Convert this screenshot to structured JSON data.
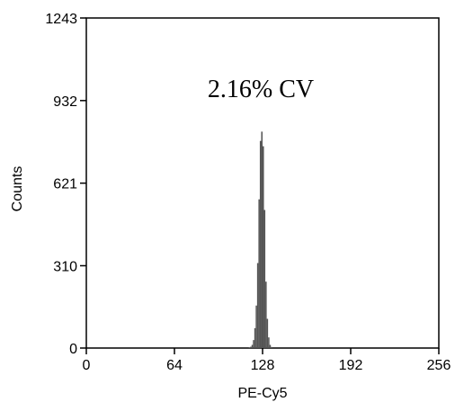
{
  "chart_data": {
    "type": "bar",
    "title": "",
    "xlabel": "PE-Cy5",
    "ylabel": "Counts",
    "xlim": [
      0,
      256
    ],
    "ylim": [
      0,
      1243
    ],
    "xticks": [
      "0",
      "64",
      "128",
      "192",
      "256"
    ],
    "yticks": [
      "0",
      "310",
      "621",
      "932",
      "1243"
    ],
    "annotation": "2.16% CV",
    "grid": false,
    "bar_color": "#555555",
    "bins": [
      [
        118,
        2
      ],
      [
        119,
        5
      ],
      [
        120,
        12
      ],
      [
        121,
        30
      ],
      [
        122,
        75
      ],
      [
        123,
        160
      ],
      [
        124,
        320
      ],
      [
        125,
        560
      ],
      [
        126,
        780
      ],
      [
        127,
        815
      ],
      [
        128,
        760
      ],
      [
        129,
        520
      ],
      [
        130,
        250
      ],
      [
        131,
        110
      ],
      [
        132,
        40
      ],
      [
        133,
        12
      ],
      [
        134,
        4
      ]
    ]
  }
}
